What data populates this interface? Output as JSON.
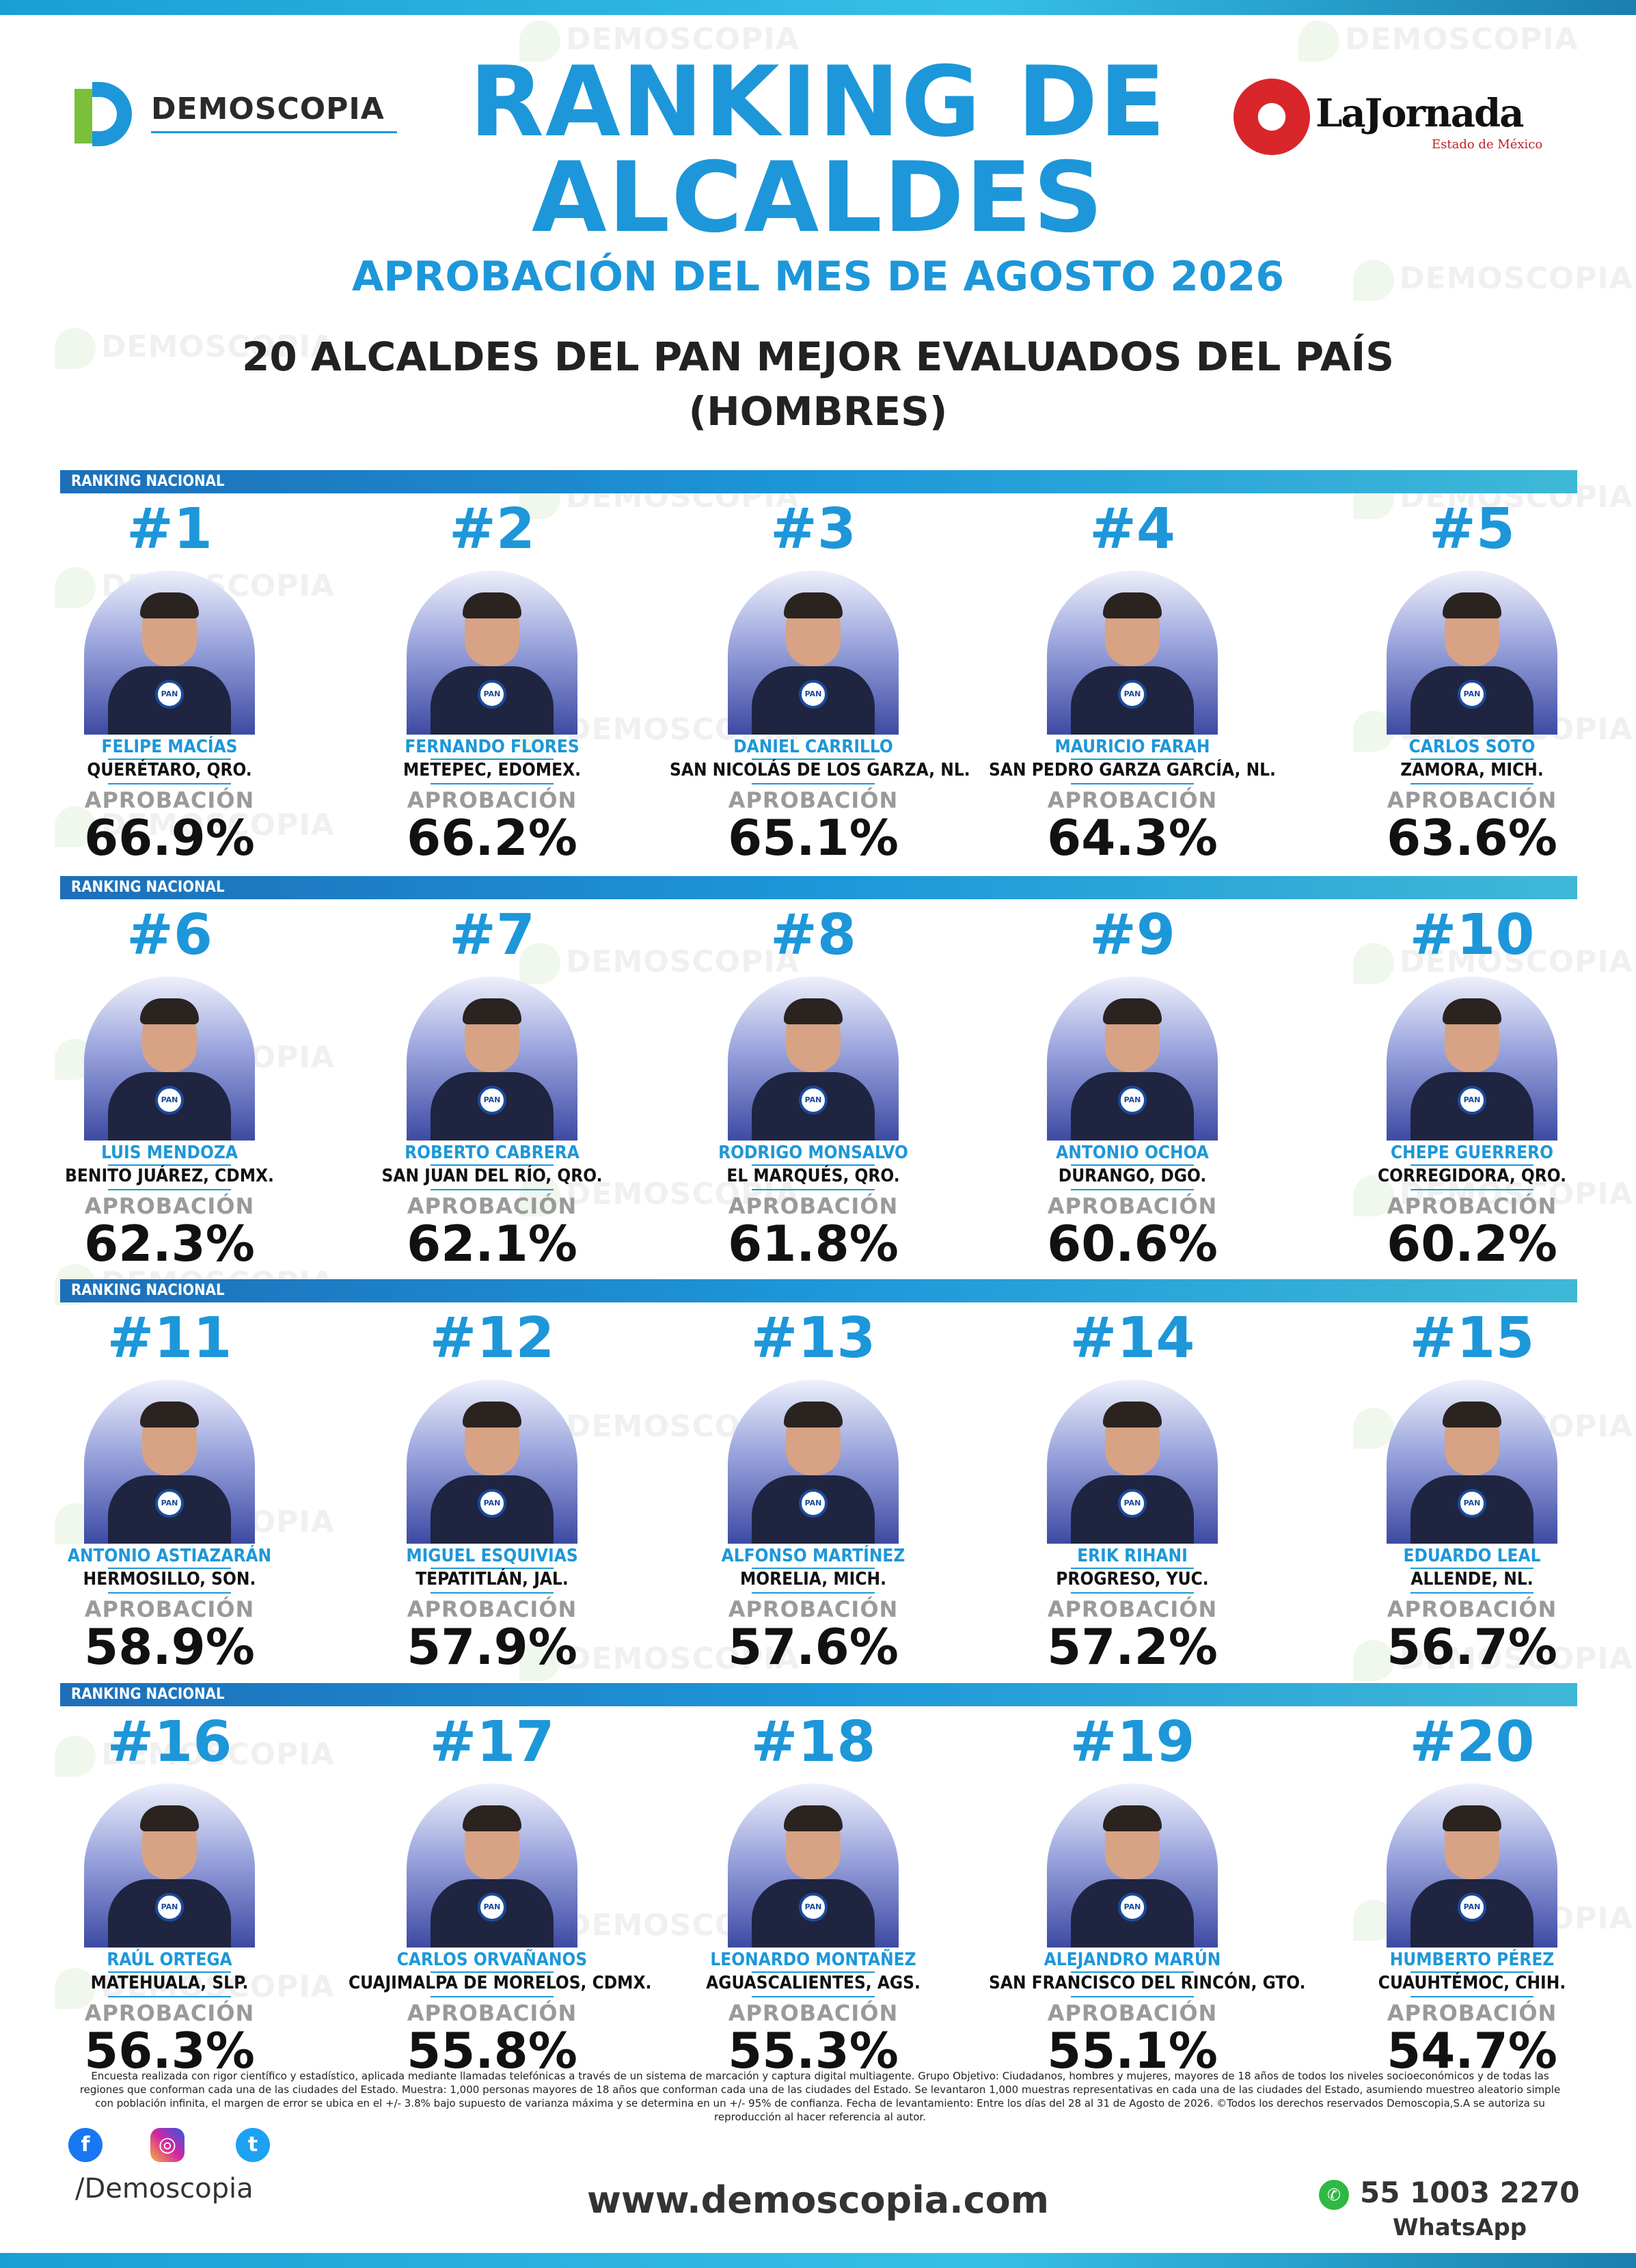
{
  "title_line1": "RANKING DE",
  "title_line2": "ALCALDES",
  "subtitle": "APROBACIÓN DEL MES DE AGOSTO 2026",
  "heading_line1": "20 ALCALDES DEL PAN MEJOR EVALUADOS DEL PAÍS",
  "heading_line2": "(HOMBRES)",
  "brand_logo_text": "DEMOSCOPIA",
  "partner_logo_name": "LaJornada",
  "partner_logo_sub": "Estado de México",
  "watermark_text": "DEMOSCOPIA",
  "row_label": "RANKING NACIONAL",
  "approval_label": "APROBACIÓN",
  "badge_text": "PAN",
  "colors": {
    "accent": "#1d97d9",
    "dark": "#111111",
    "grey": "#9a9a9a"
  },
  "rows": [
    [
      {
        "rank": "#1",
        "name": "FELIPE MACÍAS",
        "city": "QUERÉTARO, QRO.",
        "approval": "66.9%"
      },
      {
        "rank": "#2",
        "name": "FERNANDO FLORES",
        "city": "METEPEC, EDOMEX.",
        "approval": "66.2%"
      },
      {
        "rank": "#3",
        "name": "DANIEL CARRILLO",
        "city": "SAN NICOLÁS DE LOS GARZA, NL.",
        "approval": "65.1%"
      },
      {
        "rank": "#4",
        "name": "MAURICIO FARAH",
        "city": "SAN PEDRO GARZA GARCÍA, NL.",
        "approval": "64.3%"
      },
      {
        "rank": "#5",
        "name": "CARLOS SOTO",
        "city": "ZAMORA, MICH.",
        "approval": "63.6%"
      }
    ],
    [
      {
        "rank": "#6",
        "name": "LUIS MENDOZA",
        "city": "BENITO JUÁREZ, CDMX.",
        "approval": "62.3%"
      },
      {
        "rank": "#7",
        "name": "ROBERTO CABRERA",
        "city": "SAN JUAN DEL RÍO, QRO.",
        "approval": "62.1%"
      },
      {
        "rank": "#8",
        "name": "RODRIGO MONSALVO",
        "city": "EL MARQUÉS, QRO.",
        "approval": "61.8%"
      },
      {
        "rank": "#9",
        "name": "ANTONIO OCHOA",
        "city": "DURANGO, DGO.",
        "approval": "60.6%"
      },
      {
        "rank": "#10",
        "name": "CHEPE GUERRERO",
        "city": "CORREGIDORA, QRO.",
        "approval": "60.2%"
      }
    ],
    [
      {
        "rank": "#11",
        "name": "ANTONIO ASTIAZARÁN",
        "city": "HERMOSILLO, SON.",
        "approval": "58.9%"
      },
      {
        "rank": "#12",
        "name": "MIGUEL ESQUIVIAS",
        "city": "TEPATITLÁN, JAL.",
        "approval": "57.9%"
      },
      {
        "rank": "#13",
        "name": "ALFONSO MARTÍNEZ",
        "city": "MORELIA, MICH.",
        "approval": "57.6%"
      },
      {
        "rank": "#14",
        "name": "ERIK RIHANI",
        "city": "PROGRESO, YUC.",
        "approval": "57.2%"
      },
      {
        "rank": "#15",
        "name": "EDUARDO LEAL",
        "city": "ALLENDE, NL.",
        "approval": "56.7%"
      }
    ],
    [
      {
        "rank": "#16",
        "name": "RAÚL ORTEGA",
        "city": "MATEHUALA, SLP.",
        "approval": "56.3%"
      },
      {
        "rank": "#17",
        "name": "CARLOS ORVAÑANOS",
        "city": "CUAJIMALPA DE MORELOS, CDMX.",
        "approval": "55.8%"
      },
      {
        "rank": "#18",
        "name": "LEONARDO MONTAÑEZ",
        "city": "AGUASCALIENTES, AGS.",
        "approval": "55.3%"
      },
      {
        "rank": "#19",
        "name": "ALEJANDRO MARÚN",
        "city": "SAN FRANCISCO DEL RINCÓN, GTO.",
        "approval": "55.1%"
      },
      {
        "rank": "#20",
        "name": "HUMBERTO PÉREZ",
        "city": "CUAUHTÉMOC, CHIH.",
        "approval": "54.7%"
      }
    ]
  ],
  "footer": {
    "methodology": "Encuesta realizada con rigor científico y estadístico, aplicada mediante llamadas telefónicas a través de un sistema de marcación y captura digital multiagente. Grupo Objetivo: Ciudadanos, hombres y mujeres, mayores de 18 años de todos los niveles socioeconómicos y de todas las regiones que conforman cada una de las ciudades del Estado. Muestra: 1,000 personas mayores de 18 años que conforman cada una de las ciudades del Estado. Se levantaron 1,000 muestras representativas en cada una de las ciudades del Estado, asumiendo muestreo aleatorio simple con población infinita, el margen de error se ubica en el +/- 3.8% bajo supuesto de varianza máxima y se determina en un +/- 95% de confianza. Fecha de levantamiento: Entre los días del 28 al 31 de Agosto de 2026. ©Todos los derechos reservados Demoscopia,S.A se autoriza su reproducción al hacer referencia al autor.",
    "social_handle": "/Demoscopia",
    "website": "www.demoscopia.com",
    "phone": "55 1003 2270",
    "phone_label": "WhatsApp"
  }
}
